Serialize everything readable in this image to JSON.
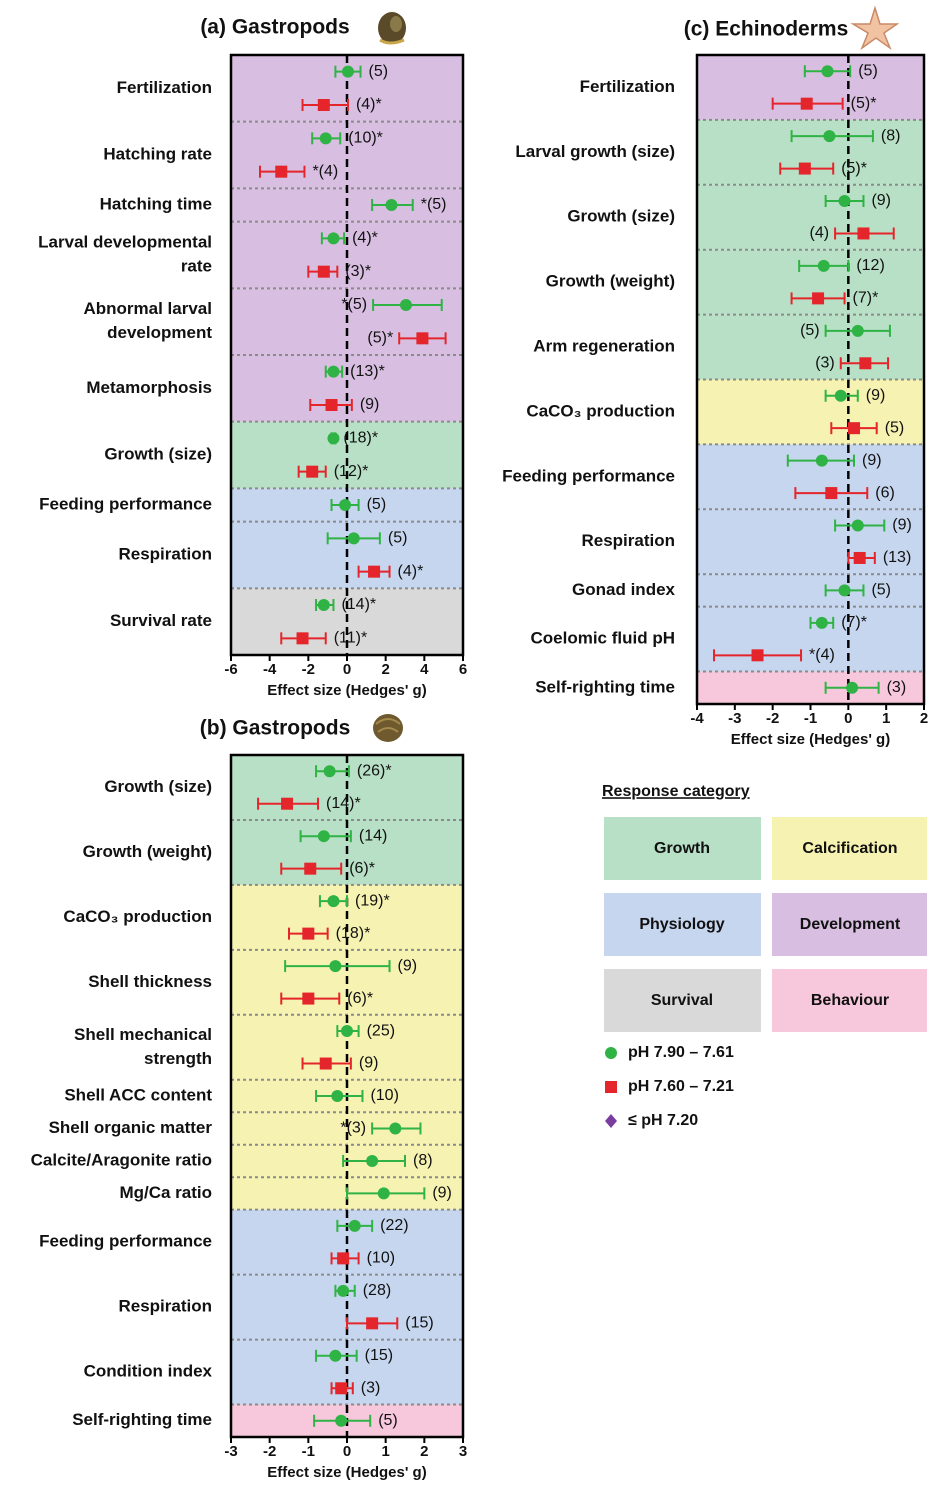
{
  "chart_data": [
    {
      "type": "forest",
      "title": "(a) Gastropods",
      "xlabel": "Effect size (Hedges' g)",
      "xlim": [
        -6,
        6
      ],
      "xticks": [
        -6,
        -4,
        -2,
        0,
        2,
        4,
        6
      ],
      "outcomes": [
        {
          "label": [
            "Fertilization"
          ],
          "category": "Development",
          "points": [
            {
              "series": 0,
              "value": 0.05,
              "ci": [
                -0.6,
                0.7
              ],
              "n_label": "(5)"
            },
            {
              "series": 1,
              "value": -1.2,
              "ci": [
                -2.3,
                0.05
              ],
              "n_label": "(4)*"
            }
          ]
        },
        {
          "label": [
            "Hatching rate"
          ],
          "category": "Development",
          "points": [
            {
              "series": 0,
              "value": -1.1,
              "ci": [
                -1.8,
                -0.35
              ],
              "n_label": "(10)*"
            },
            {
              "series": 1,
              "value": -3.4,
              "ci": [
                -4.5,
                -2.2
              ],
              "n_label": "*(4)"
            }
          ]
        },
        {
          "label": [
            "Hatching time"
          ],
          "category": "Development",
          "points": [
            {
              "series": 0,
              "value": 2.3,
              "ci": [
                1.3,
                3.4
              ],
              "n_label": "*(5)"
            }
          ]
        },
        {
          "label": [
            "Larval developmental",
            "rate"
          ],
          "category": "Development",
          "points": [
            {
              "series": 0,
              "value": -0.7,
              "ci": [
                -1.3,
                -0.15
              ],
              "n_label": "(4)*"
            },
            {
              "series": 1,
              "value": -1.2,
              "ci": [
                -2.0,
                -0.5
              ],
              "n_label": "(3)*"
            }
          ]
        },
        {
          "label": [
            "Abnormal larval",
            "development"
          ],
          "category": "Development",
          "points": [
            {
              "series": 0,
              "value": 3.05,
              "ci": [
                1.35,
                4.9
              ],
              "n_label": "*(5)"
            },
            {
              "series": 1,
              "value": 3.9,
              "ci": [
                2.7,
                5.1
              ],
              "n_label": "(5)*"
            }
          ]
        },
        {
          "label": [
            "Metamorphosis"
          ],
          "category": "Development",
          "points": [
            {
              "series": 0,
              "value": -0.7,
              "ci": [
                -1.1,
                -0.25
              ],
              "n_label": "(13)*"
            },
            {
              "series": 1,
              "value": -0.8,
              "ci": [
                -1.9,
                0.25
              ],
              "n_label": "(9)"
            }
          ]
        },
        {
          "label": [
            "Growth (size)"
          ],
          "category": "Growth",
          "points": [
            {
              "series": 0,
              "value": -0.7,
              "ci": [
                -0.8,
                -0.6
              ],
              "n_label": "(18)*"
            },
            {
              "series": 1,
              "value": -1.8,
              "ci": [
                -2.5,
                -1.1
              ],
              "n_label": "(12)*"
            }
          ]
        },
        {
          "label": [
            "Feeding performance"
          ],
          "category": "Physiology",
          "points": [
            {
              "series": 0,
              "value": -0.1,
              "ci": [
                -0.8,
                0.6
              ],
              "n_label": "(5)"
            }
          ]
        },
        {
          "label": [
            "Respiration"
          ],
          "category": "Physiology",
          "points": [
            {
              "series": 0,
              "value": 0.35,
              "ci": [
                -1.0,
                1.7
              ],
              "n_label": "(5)"
            },
            {
              "series": 1,
              "value": 1.4,
              "ci": [
                0.6,
                2.2
              ],
              "n_label": "(4)*"
            }
          ]
        },
        {
          "label": [
            "Survival rate"
          ],
          "category": "Survival",
          "points": [
            {
              "series": 0,
              "value": -1.2,
              "ci": [
                -1.6,
                -0.7
              ],
              "n_label": "(14)*"
            },
            {
              "series": 1,
              "value": -2.3,
              "ci": [
                -3.4,
                -1.1
              ],
              "n_label": "(11)*"
            }
          ]
        }
      ]
    },
    {
      "type": "forest",
      "title": "(b) Gastropods",
      "xlabel": "Effect size (Hedges' g)",
      "xlim": [
        -3,
        3
      ],
      "xticks": [
        -3,
        -2,
        -1,
        0,
        1,
        2,
        3
      ],
      "outcomes": [
        {
          "label": [
            "Growth (size)"
          ],
          "category": "Growth",
          "points": [
            {
              "series": 0,
              "value": -0.45,
              "ci": [
                -0.8,
                0.05
              ],
              "n_label": "(26)*"
            },
            {
              "series": 1,
              "value": -1.55,
              "ci": [
                -2.3,
                -0.75
              ],
              "n_label": "(14)*"
            }
          ]
        },
        {
          "label": [
            "Growth (weight)"
          ],
          "category": "Growth",
          "points": [
            {
              "series": 0,
              "value": -0.6,
              "ci": [
                -1.2,
                0.1
              ],
              "n_label": "(14)"
            },
            {
              "series": 1,
              "value": -0.95,
              "ci": [
                -1.7,
                -0.15
              ],
              "n_label": "(6)*"
            }
          ]
        },
        {
          "label": [
            "CaCO₃ production"
          ],
          "category": "Calcification",
          "points": [
            {
              "series": 0,
              "value": -0.35,
              "ci": [
                -0.7,
                0.0
              ],
              "n_label": "(19)*"
            },
            {
              "series": 1,
              "value": -1.0,
              "ci": [
                -1.5,
                -0.5
              ],
              "n_label": "(18)*"
            }
          ]
        },
        {
          "label": [
            "Shell thickness"
          ],
          "category": "Calcification",
          "points": [
            {
              "series": 0,
              "value": -0.3,
              "ci": [
                -1.6,
                1.1
              ],
              "n_label": "(9)"
            },
            {
              "series": 1,
              "value": -1.0,
              "ci": [
                -1.7,
                -0.2
              ],
              "n_label": "(6)*"
            }
          ]
        },
        {
          "label": [
            "Shell mechanical",
            "strength"
          ],
          "category": "Calcification",
          "points": [
            {
              "series": 0,
              "value": 0.0,
              "ci": [
                -0.25,
                0.3
              ],
              "n_label": "(25)"
            },
            {
              "series": 1,
              "value": -0.55,
              "ci": [
                -1.15,
                0.1
              ],
              "n_label": "(9)"
            }
          ]
        },
        {
          "label": [
            "Shell ACC content"
          ],
          "category": "Calcification",
          "points": [
            {
              "series": 0,
              "value": -0.25,
              "ci": [
                -0.8,
                0.4
              ],
              "n_label": "(10)"
            }
          ]
        },
        {
          "label": [
            "Shell organic matter"
          ],
          "category": "Calcification",
          "points": [
            {
              "series": 0,
              "value": 1.25,
              "ci": [
                0.65,
                1.9
              ],
              "n_label": "*(3)"
            }
          ]
        },
        {
          "label": [
            "Calcite/Aragonite ratio"
          ],
          "category": "Calcification",
          "points": [
            {
              "series": 0,
              "value": 0.65,
              "ci": [
                -0.1,
                1.5
              ],
              "n_label": "(8)"
            }
          ]
        },
        {
          "label": [
            "Mg/Ca ratio"
          ],
          "category": "Calcification",
          "points": [
            {
              "series": 0,
              "value": 0.95,
              "ci": [
                0.0,
                2.0
              ],
              "n_label": "(9)"
            }
          ]
        },
        {
          "label": [
            "Feeding performance"
          ],
          "category": "Physiology",
          "points": [
            {
              "series": 0,
              "value": 0.2,
              "ci": [
                -0.25,
                0.65
              ],
              "n_label": "(22)"
            },
            {
              "series": 1,
              "value": -0.1,
              "ci": [
                -0.4,
                0.3
              ],
              "n_label": "(10)"
            }
          ]
        },
        {
          "label": [
            "Respiration"
          ],
          "category": "Physiology",
          "points": [
            {
              "series": 0,
              "value": -0.1,
              "ci": [
                -0.3,
                0.2
              ],
              "n_label": "(28)"
            },
            {
              "series": 1,
              "value": 0.65,
              "ci": [
                0.0,
                1.3
              ],
              "n_label": "(15)"
            }
          ]
        },
        {
          "label": [
            "Condition index"
          ],
          "category": "Physiology",
          "points": [
            {
              "series": 0,
              "value": -0.3,
              "ci": [
                -0.8,
                0.25
              ],
              "n_label": "(15)"
            },
            {
              "series": 1,
              "value": -0.15,
              "ci": [
                -0.4,
                0.15
              ],
              "n_label": "(3)"
            }
          ]
        },
        {
          "label": [
            "Self-righting time"
          ],
          "category": "Behaviour",
          "points": [
            {
              "series": 0,
              "value": -0.15,
              "ci": [
                -0.85,
                0.6
              ],
              "n_label": "(5)"
            }
          ]
        }
      ]
    },
    {
      "type": "forest",
      "title": "(c) Echinoderms",
      "xlabel": "Effect size (Hedges' g)",
      "xlim": [
        -4,
        2
      ],
      "xticks": [
        -4,
        -3,
        -2,
        -1,
        0,
        1,
        2
      ],
      "outcomes": [
        {
          "label": [
            "Fertilization"
          ],
          "category": "Development",
          "points": [
            {
              "series": 0,
              "value": -0.55,
              "ci": [
                -1.15,
                0.05
              ],
              "n_label": "(5)"
            },
            {
              "series": 1,
              "value": -1.1,
              "ci": [
                -2.0,
                -0.15
              ],
              "n_label": "(5)*"
            }
          ]
        },
        {
          "label": [
            "Larval growth (size)"
          ],
          "category": "Growth",
          "points": [
            {
              "series": 0,
              "value": -0.5,
              "ci": [
                -1.5,
                0.65
              ],
              "n_label": "(8)"
            },
            {
              "series": 1,
              "value": -1.15,
              "ci": [
                -1.8,
                -0.4
              ],
              "n_label": "(5)*"
            }
          ]
        },
        {
          "label": [
            "Growth (size)"
          ],
          "category": "Growth",
          "points": [
            {
              "series": 0,
              "value": -0.1,
              "ci": [
                -0.6,
                0.4
              ],
              "n_label": "(9)"
            },
            {
              "series": 1,
              "value": 0.4,
              "ci": [
                -0.35,
                1.2
              ],
              "n_label": "(4)"
            }
          ]
        },
        {
          "label": [
            "Growth (weight)"
          ],
          "category": "Growth",
          "points": [
            {
              "series": 0,
              "value": -0.65,
              "ci": [
                -1.3,
                0.0
              ],
              "n_label": "(12)"
            },
            {
              "series": 1,
              "value": -0.8,
              "ci": [
                -1.5,
                -0.1
              ],
              "n_label": "(7)*"
            }
          ]
        },
        {
          "label": [
            "Arm regeneration"
          ],
          "category": "Growth",
          "points": [
            {
              "series": 0,
              "value": 0.25,
              "ci": [
                -0.6,
                1.1
              ],
              "n_label": "(5)"
            },
            {
              "series": 1,
              "value": 0.45,
              "ci": [
                -0.2,
                1.05
              ],
              "n_label": "(3)"
            }
          ]
        },
        {
          "label": [
            "CaCO₃ production"
          ],
          "category": "Calcification",
          "points": [
            {
              "series": 0,
              "value": -0.2,
              "ci": [
                -0.6,
                0.25
              ],
              "n_label": "(9)"
            },
            {
              "series": 1,
              "value": 0.15,
              "ci": [
                -0.45,
                0.75
              ],
              "n_label": "(5)"
            }
          ]
        },
        {
          "label": [
            "Feeding performance"
          ],
          "category": "Physiology",
          "points": [
            {
              "series": 0,
              "value": -0.7,
              "ci": [
                -1.6,
                0.15
              ],
              "n_label": "(9)"
            },
            {
              "series": 1,
              "value": -0.45,
              "ci": [
                -1.4,
                0.5
              ],
              "n_label": "(6)"
            }
          ]
        },
        {
          "label": [
            "Respiration"
          ],
          "category": "Physiology",
          "points": [
            {
              "series": 0,
              "value": 0.25,
              "ci": [
                -0.35,
                0.95
              ],
              "n_label": "(9)"
            },
            {
              "series": 1,
              "value": 0.3,
              "ci": [
                0.0,
                0.7
              ],
              "n_label": "(13)"
            }
          ]
        },
        {
          "label": [
            "Gonad index"
          ],
          "category": "Physiology",
          "points": [
            {
              "series": 0,
              "value": -0.1,
              "ci": [
                -0.6,
                0.4
              ],
              "n_label": "(5)"
            }
          ]
        },
        {
          "label": [
            "Coelomic fluid pH"
          ],
          "category": "Physiology",
          "points": [
            {
              "series": 0,
              "value": -0.7,
              "ci": [
                -1.0,
                -0.4
              ],
              "n_label": "(7)*"
            },
            {
              "series": 1,
              "value": -2.4,
              "ci": [
                -3.55,
                -1.25
              ],
              "n_label": "*(4)"
            }
          ]
        },
        {
          "label": [
            "Self-righting time"
          ],
          "category": "Behaviour",
          "points": [
            {
              "series": 0,
              "value": 0.1,
              "ci": [
                -0.6,
                0.8
              ],
              "n_label": "(3)"
            }
          ]
        }
      ]
    }
  ],
  "legend": {
    "title": "Response category",
    "categories": [
      {
        "name": "Growth",
        "color": "#b8e0c6"
      },
      {
        "name": "Calcification",
        "color": "#f6f2b1"
      },
      {
        "name": "Physiology",
        "color": "#c6d6ef"
      },
      {
        "name": "Development",
        "color": "#d8bfe1"
      },
      {
        "name": "Survival",
        "color": "#d9d9d9"
      },
      {
        "name": "Behaviour",
        "color": "#f7c8db"
      }
    ],
    "series": [
      {
        "name": "pH 7.90 – 7.61",
        "color": "#2fb344",
        "marker": "circle"
      },
      {
        "name": "pH 7.60 – 7.21",
        "color": "#e4252b",
        "marker": "square"
      },
      {
        "name": "≤ pH 7.20",
        "color": "#7a3d9e",
        "marker": "diamond"
      }
    ]
  }
}
